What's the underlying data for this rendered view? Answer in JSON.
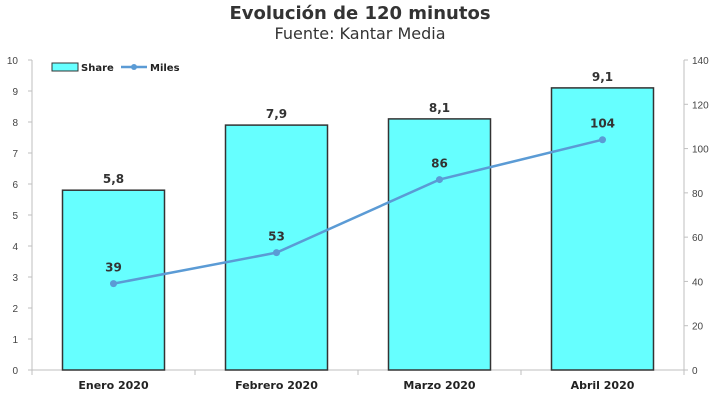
{
  "chart_data": {
    "type": "bar+line",
    "title": "Evolución de 120 minutos",
    "subtitle": "Fuente: Kantar Media",
    "categories": [
      "Enero 2020",
      "Febrero 2020",
      "Marzo 2020",
      "Abril 2020"
    ],
    "series": [
      {
        "name": "Share",
        "type": "bar",
        "axis": "left",
        "values": [
          5.8,
          7.9,
          8.1,
          9.1
        ],
        "labels": [
          "5,8",
          "7,9",
          "8,1",
          "9,1"
        ]
      },
      {
        "name": "Miles",
        "type": "line",
        "axis": "right",
        "values": [
          39,
          53,
          86,
          104
        ],
        "labels": [
          "39",
          "53",
          "86",
          "104"
        ]
      }
    ],
    "left_axis": {
      "ylim": [
        0,
        10
      ],
      "ticks": [
        0,
        1,
        2,
        3,
        4,
        5,
        6,
        7,
        8,
        9,
        10
      ]
    },
    "right_axis": {
      "ylim": [
        0,
        140
      ],
      "ticks": [
        0,
        20,
        40,
        60,
        80,
        100,
        120,
        140
      ]
    },
    "grid": false,
    "legend": "top-left",
    "colors": {
      "bar_fill": "#66FFFF",
      "bar_stroke": "#333333",
      "line": "#5B9BD5"
    }
  }
}
